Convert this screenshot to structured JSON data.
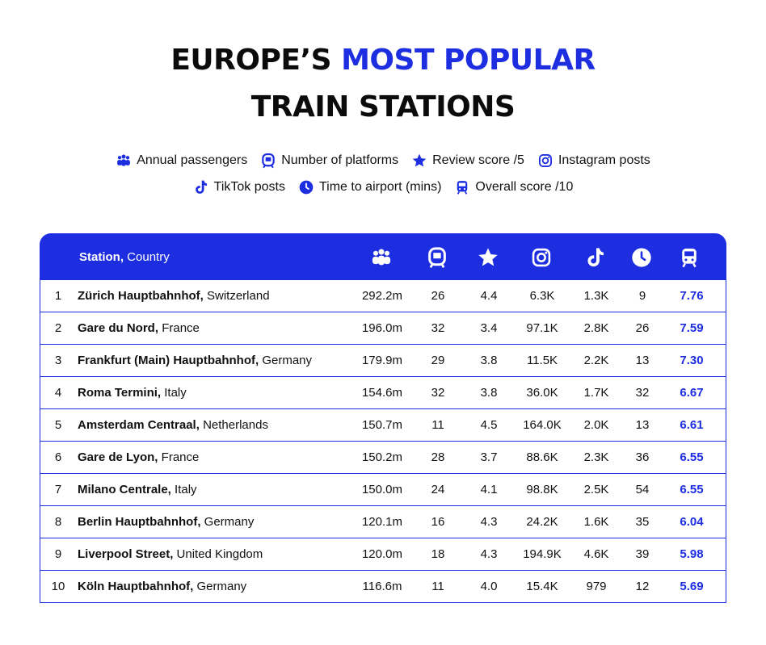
{
  "title": {
    "line1_prefix": "EUROPE’S",
    "line1_accent": "MOST POPULAR",
    "line2": "TRAIN STATIONS"
  },
  "legend": [
    {
      "icon": "people-icon",
      "label": "Annual passengers"
    },
    {
      "icon": "platform-icon",
      "label": "Number of platforms"
    },
    {
      "icon": "star-icon",
      "label": "Review score /5"
    },
    {
      "icon": "instagram-icon",
      "label": "Instagram posts"
    },
    {
      "icon": "tiktok-icon",
      "label": "TikTok posts"
    },
    {
      "icon": "clock-icon",
      "label": "Time to airport (mins)"
    },
    {
      "icon": "train-icon",
      "label": "Overall score /10"
    }
  ],
  "colors": {
    "accent": "#1d2ee0",
    "text": "#111111",
    "background": "#ffffff"
  },
  "chart_data": {
    "type": "table",
    "header": {
      "station": "Station,",
      "country": "Country"
    },
    "columns": [
      "Annual passengers",
      "Number of platforms",
      "Review score /5",
      "Instagram posts",
      "TikTok posts",
      "Time to airport (mins)",
      "Overall score /10"
    ],
    "rows": [
      {
        "rank": "1",
        "station": "Zürich Hauptbahnhof,",
        "country": "Switzerland",
        "passengers": "292.2m",
        "platforms": "26",
        "review": "4.4",
        "instagram": "6.3K",
        "tiktok": "1.3K",
        "airport": "9",
        "score": "7.76"
      },
      {
        "rank": "2",
        "station": "Gare du Nord,",
        "country": "France",
        "passengers": "196.0m",
        "platforms": "32",
        "review": "3.4",
        "instagram": "97.1K",
        "tiktok": "2.8K",
        "airport": "26",
        "score": "7.59"
      },
      {
        "rank": "3",
        "station": "Frankfurt (Main) Hauptbahnhof,",
        "country": "Germany",
        "passengers": "179.9m",
        "platforms": "29",
        "review": "3.8",
        "instagram": "11.5K",
        "tiktok": "2.2K",
        "airport": "13",
        "score": "7.30"
      },
      {
        "rank": "4",
        "station": "Roma Termini,",
        "country": "Italy",
        "passengers": "154.6m",
        "platforms": "32",
        "review": "3.8",
        "instagram": "36.0K",
        "tiktok": "1.7K",
        "airport": "32",
        "score": "6.67"
      },
      {
        "rank": "5",
        "station": "Amsterdam Centraal,",
        "country": "Netherlands",
        "passengers": "150.7m",
        "platforms": "11",
        "review": "4.5",
        "instagram": "164.0K",
        "tiktok": "2.0K",
        "airport": "13",
        "score": "6.61"
      },
      {
        "rank": "6",
        "station": "Gare de Lyon,",
        "country": "France",
        "passengers": "150.2m",
        "platforms": "28",
        "review": "3.7",
        "instagram": "88.6K",
        "tiktok": "2.3K",
        "airport": "36",
        "score": "6.55"
      },
      {
        "rank": "7",
        "station": "Milano Centrale,",
        "country": "Italy",
        "passengers": "150.0m",
        "platforms": "24",
        "review": "4.1",
        "instagram": "98.8K",
        "tiktok": "2.5K",
        "airport": "54",
        "score": "6.55"
      },
      {
        "rank": "8",
        "station": "Berlin Hauptbahnhof,",
        "country": "Germany",
        "passengers": "120.1m",
        "platforms": "16",
        "review": "4.3",
        "instagram": "24.2K",
        "tiktok": "1.6K",
        "airport": "35",
        "score": "6.04"
      },
      {
        "rank": "9",
        "station": "Liverpool Street,",
        "country": "United Kingdom",
        "passengers": "120.0m",
        "platforms": "18",
        "review": "4.3",
        "instagram": "194.9K",
        "tiktok": "4.6K",
        "airport": "39",
        "score": "5.98"
      },
      {
        "rank": "10",
        "station": "Köln Hauptbahnhof,",
        "country": "Germany",
        "passengers": "116.6m",
        "platforms": "11",
        "review": "4.0",
        "instagram": "15.4K",
        "tiktok": "979",
        "airport": "12",
        "score": "5.69"
      }
    ]
  }
}
